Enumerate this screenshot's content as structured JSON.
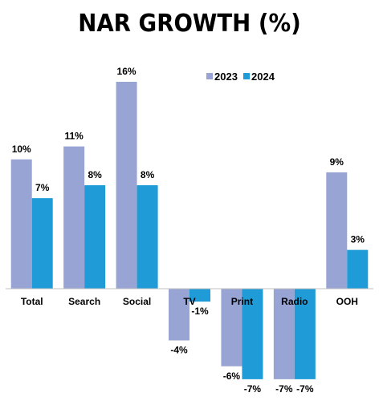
{
  "chart_data": {
    "type": "bar",
    "title": "NAR GROWTH (%)",
    "categories": [
      "Total",
      "Search",
      "Social",
      "TV",
      "Print",
      "Radio",
      "OOH"
    ],
    "series": [
      {
        "name": "2023",
        "color": "#98A4D3",
        "values": [
          10,
          11,
          16,
          -4,
          -6,
          -7,
          9
        ],
        "labels": [
          "10%",
          "11%",
          "16%",
          "-4%",
          "-6%",
          "-7%",
          "9%"
        ]
      },
      {
        "name": "2024",
        "color": "#1F9BD7",
        "values": [
          7,
          8,
          8,
          -1,
          -7,
          -7,
          3
        ],
        "labels": [
          "7%",
          "8%",
          "8%",
          "-1%",
          "-7%",
          "-7%",
          "3%"
        ]
      }
    ],
    "legend_position": "top-right",
    "grid": false,
    "ylim": [
      -8,
      16
    ]
  }
}
